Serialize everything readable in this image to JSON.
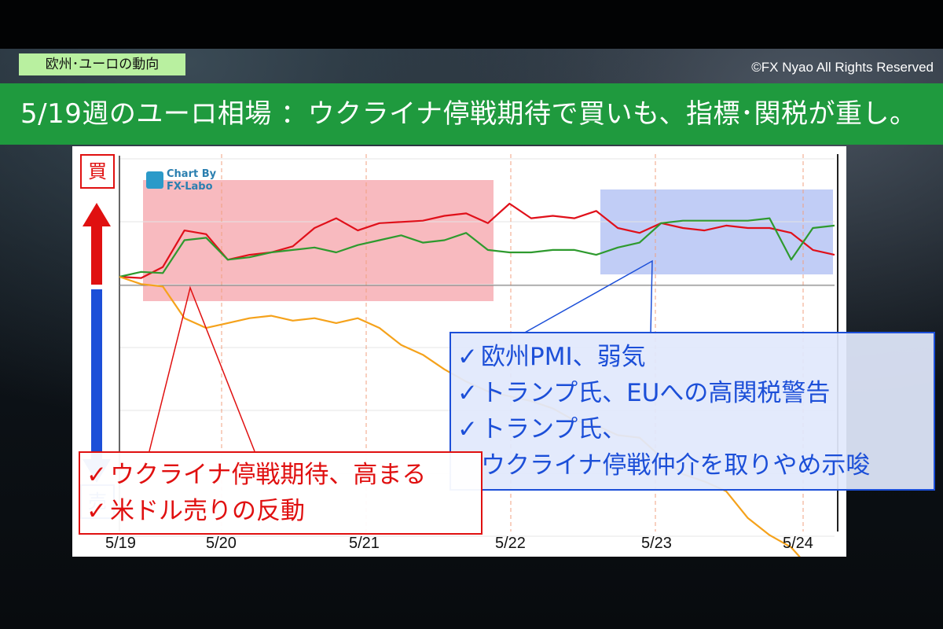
{
  "header": {
    "tag": "欧州･ユーロの動向",
    "copyright": "©FX Nyao All Rights Reserved",
    "title": "5/19週のユーロ相場 ：ウクライナ停戦期待で買いも、指標･関税が重し。"
  },
  "legend": {
    "buy": "買",
    "sell": "売"
  },
  "logo": {
    "line1": "Chart By",
    "line2": "FX-Labo"
  },
  "callouts": {
    "blue": {
      "lines": [
        "欧州PMI、弱気",
        "トランプ氏、EUへの高関税警告",
        "トランプ氏、",
        "ウクライナ停戦仲介を取りやめ示唆"
      ],
      "checks": [
        "✓",
        "✓",
        "✓"
      ]
    },
    "red": {
      "lines": [
        "ウクライナ停戦期待、高まる",
        "米ドル売りの反動"
      ],
      "checks": [
        "✓",
        "✓"
      ]
    }
  },
  "colors": {
    "red_line": "#e0101a",
    "green_line": "#2e9a2e",
    "orange_line": "#f5a21b",
    "red_highlight": "#f7aeb4",
    "blue_highlight": "#b6c4f4",
    "title_green": "#1f9a3e",
    "tag_green": "#b9f0a0"
  },
  "chart_data": {
    "type": "line",
    "x_labels": [
      "5/19",
      "5/20",
      "5/21",
      "5/22",
      "5/23",
      "5/24"
    ],
    "series": [
      {
        "color": "#e0101a",
        "values": [
          0,
          -1,
          8,
          38,
          35,
          14,
          18,
          20,
          25,
          40,
          48,
          38,
          44,
          45,
          46,
          50,
          52,
          44,
          60,
          48,
          50,
          48,
          54,
          40,
          36,
          44,
          40,
          38,
          42,
          40,
          40,
          36,
          22,
          18
        ]
      },
      {
        "color": "#2e9a2e",
        "values": [
          0,
          4,
          3,
          30,
          32,
          14,
          16,
          20,
          22,
          24,
          20,
          26,
          30,
          34,
          28,
          30,
          36,
          22,
          20,
          20,
          22,
          22,
          18,
          24,
          28,
          44,
          46,
          46,
          46,
          46,
          48,
          14,
          40,
          42
        ]
      },
      {
        "color": "#f5a21b",
        "values": [
          0,
          -6,
          -8,
          -34,
          -42,
          -38,
          -34,
          -32,
          -36,
          -34,
          -38,
          -34,
          -42,
          -56,
          -64,
          -76,
          -86,
          -94,
          -98,
          -102,
          -108,
          -118,
          -122,
          -130,
          -132,
          -148,
          -162,
          -168,
          -176,
          -198,
          -212,
          -222,
          -242,
          -250
        ]
      }
    ]
  }
}
